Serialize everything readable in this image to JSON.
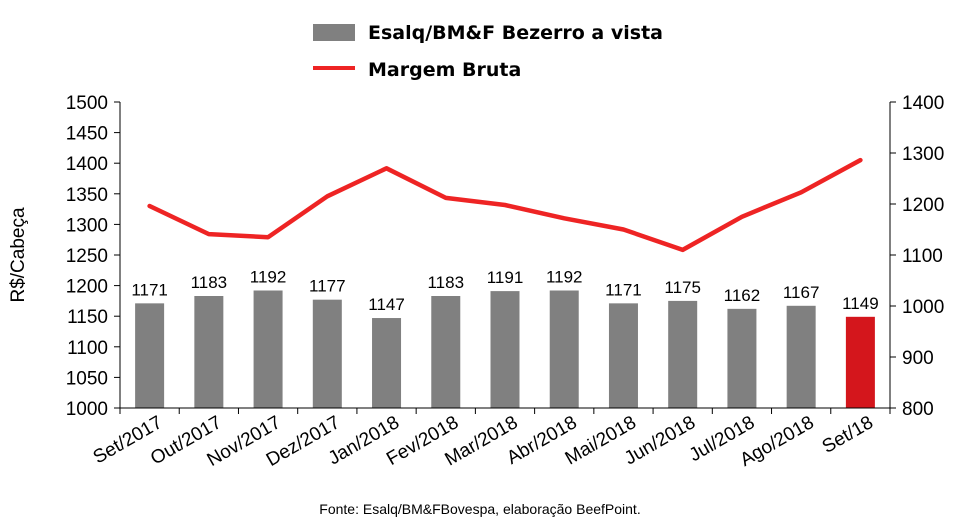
{
  "chart_data": {
    "type": "bar",
    "categories": [
      "Set/2017",
      "Out/2017",
      "Nov/2017",
      "Dez/2017",
      "Jan/2018",
      "Fev/2018",
      "Mar/2018",
      "Abr/2018",
      "Mai/2018",
      "Jun/2018",
      "Jul/2018",
      "Ago/2018",
      "Set/18"
    ],
    "series": [
      {
        "name": "Esalq/BM&F Bezerro a vista",
        "type": "bar",
        "axis": "left",
        "values": [
          1171,
          1183,
          1192,
          1177,
          1147,
          1183,
          1191,
          1192,
          1171,
          1175,
          1162,
          1167,
          1149
        ],
        "color": "#808080",
        "highlight_last_color": "#d4161c"
      },
      {
        "name": "Margem Bruta",
        "type": "line",
        "axis": "right",
        "values": [
          1196,
          1141,
          1135,
          1215,
          1270,
          1212,
          1198,
          1172,
          1150,
          1110,
          1175,
          1223,
          1286
        ],
        "color": "#ee2424"
      }
    ],
    "ylabel": "R$/Cabeça",
    "ylim": [
      1000,
      1500
    ],
    "yticks": [
      1000,
      1050,
      1100,
      1150,
      1200,
      1250,
      1300,
      1350,
      1400,
      1450,
      1500
    ],
    "y2lim": [
      800,
      1400
    ],
    "y2ticks": [
      800,
      900,
      1000,
      1100,
      1200,
      1300,
      1400
    ],
    "legend_position": "top-center",
    "source": "Fonte: Esalq/BM&FBovespa, elaboração BeefPoint."
  }
}
